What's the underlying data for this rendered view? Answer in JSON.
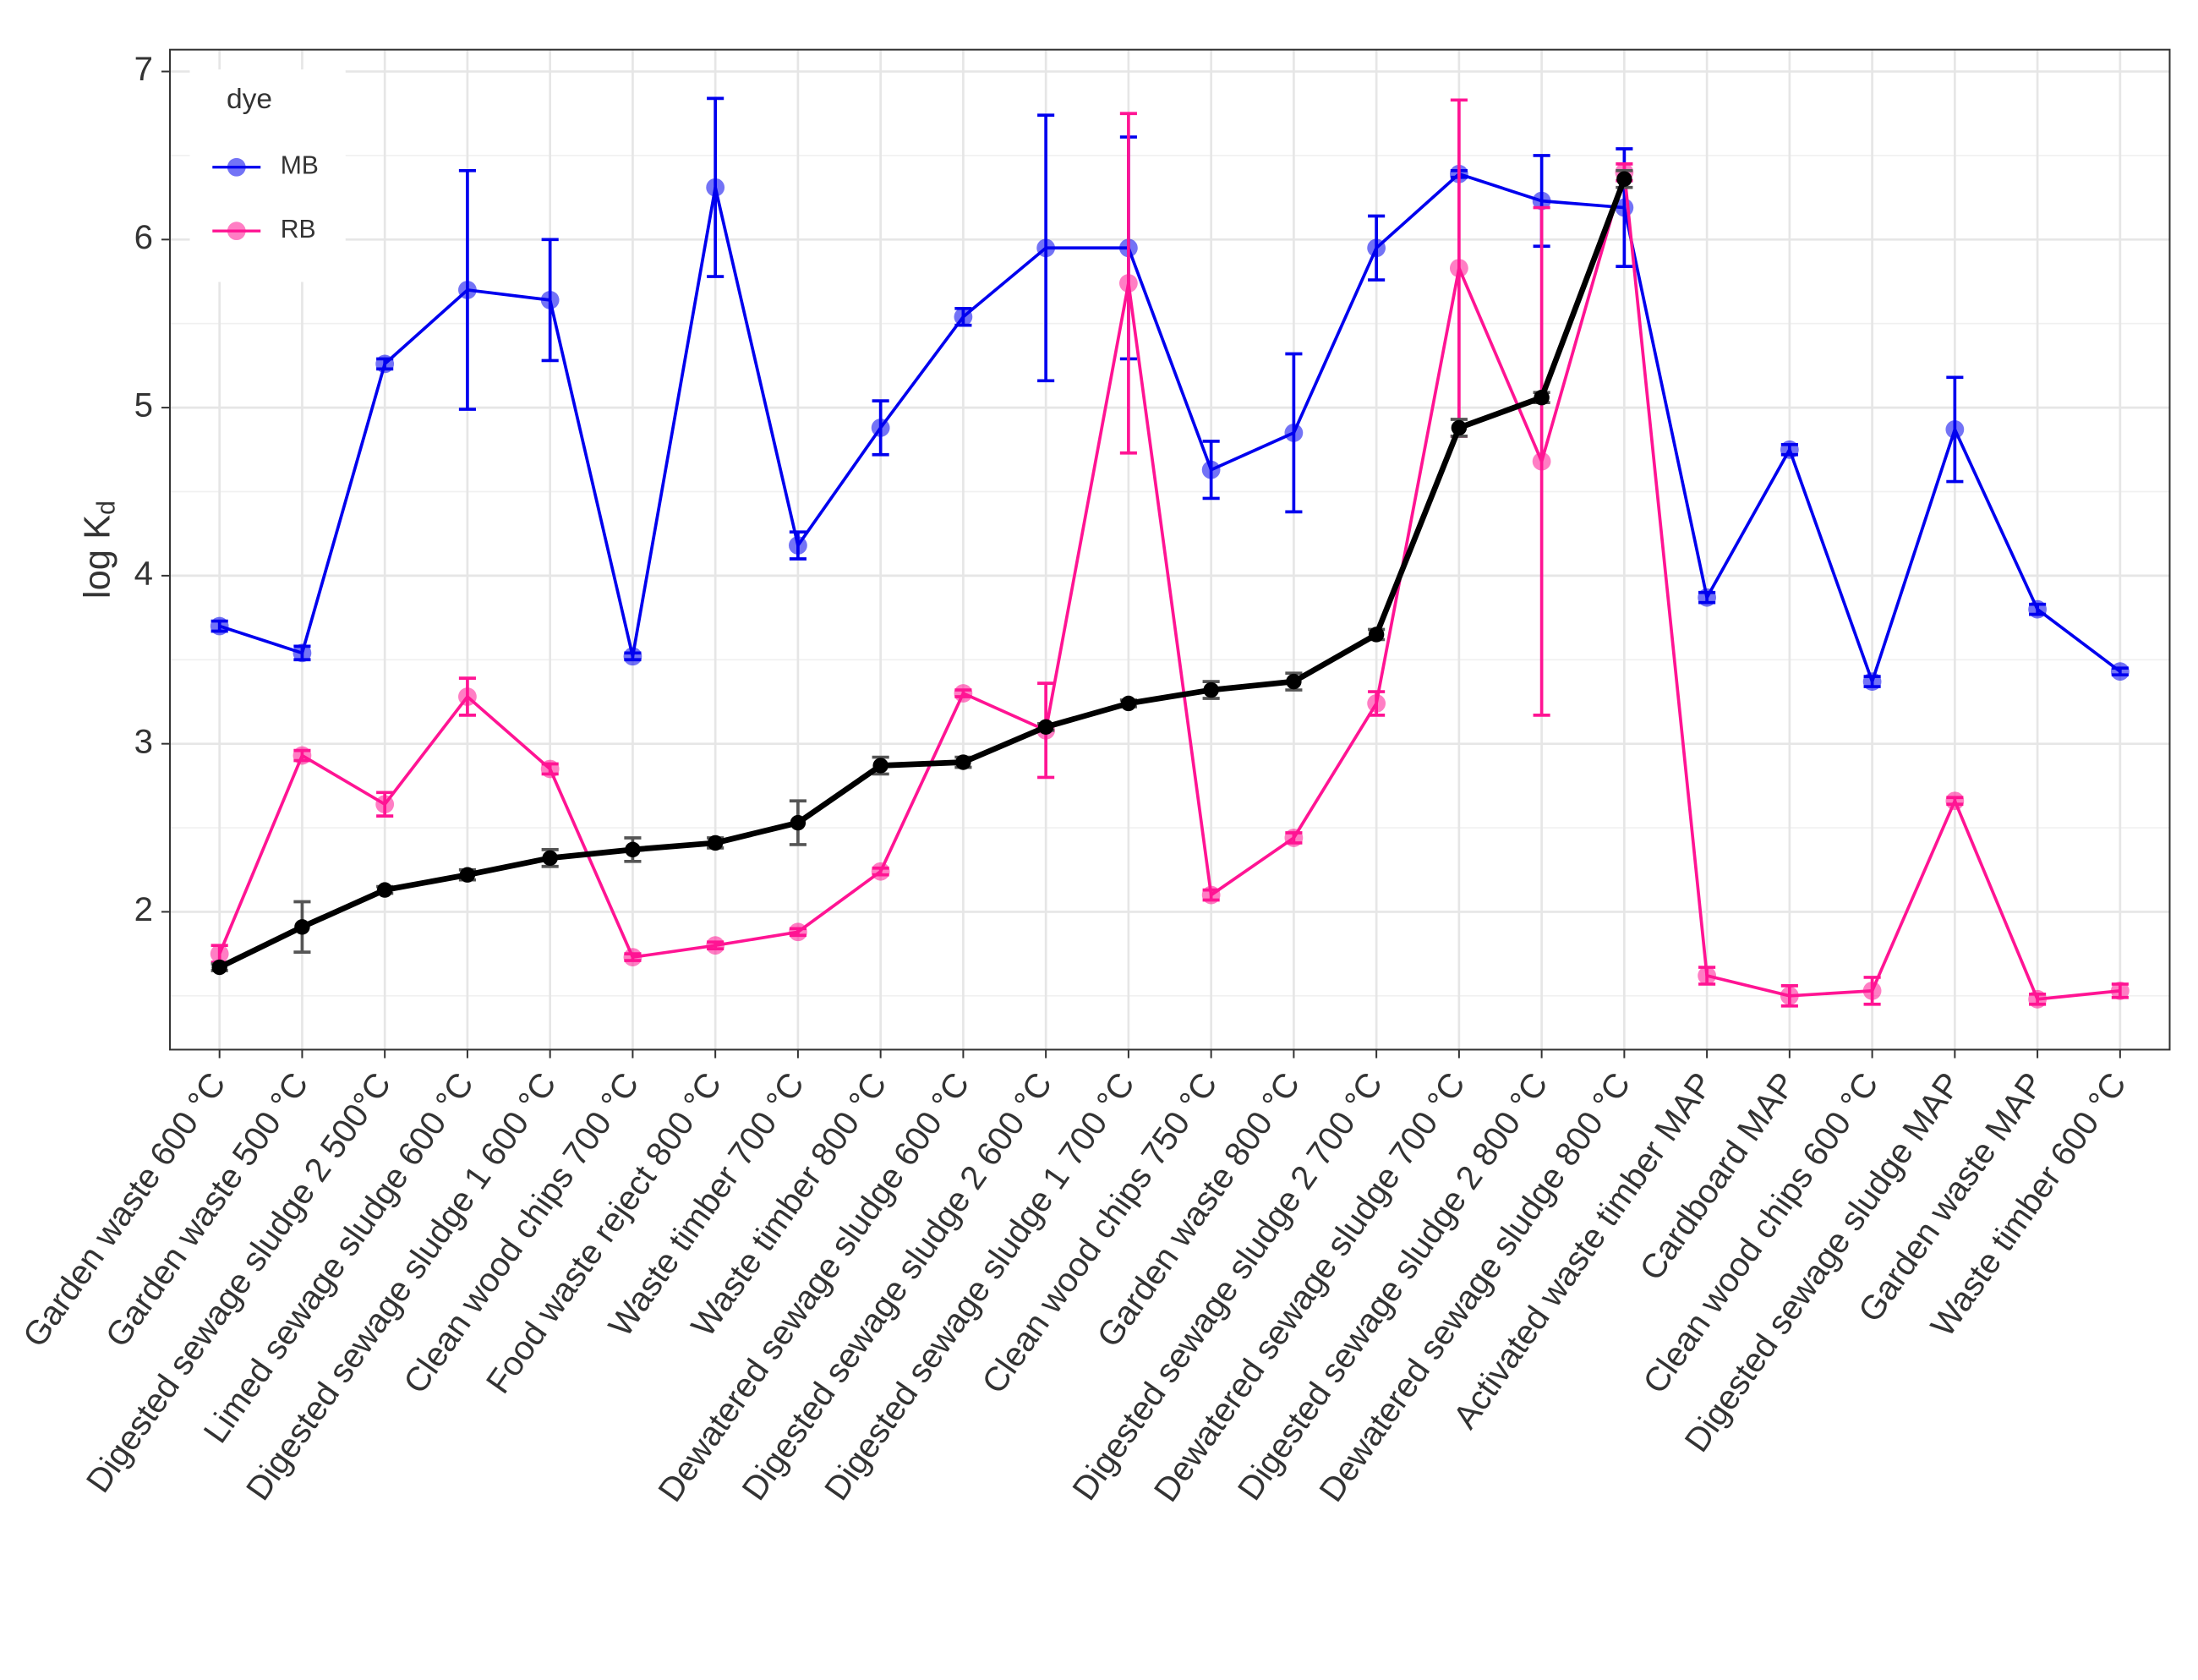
{
  "chart_data": {
    "type": "line",
    "y_label": "log K",
    "y_label_sub": "d",
    "legend_title": "dye",
    "legend_position": "top-left",
    "grid": true,
    "categories": [
      "Garden waste 600 °C",
      "Garden waste 500 °C",
      "Digested sewage sludge 2 500°C",
      "Limed sewage sludge 600 °C",
      "Digested sewage sludge 1 600 °C",
      "Clean wood chips 700 °C",
      "Food waste reject 800 °C",
      "Waste timber 700 °C",
      "Waste timber 800 °C",
      "Dewatered sewage sludge 600 °C",
      "Digested sewage sludge 2 600 °C",
      "Digested sewage sludge 1 700 °C",
      "Clean wood chips 750 °C",
      "Garden waste 800 °C",
      "Digested sewage sludge 2 700 °C",
      "Dewatered sewage sludge 700 °C",
      "Digested sewage sludge 2 800 °C",
      "Dewatered sewage sludge 800 °C",
      "Activated waste timber MAP",
      "Cardboard MAP",
      "Clean wood chips 600 °C",
      "Digested sewage sludge MAP",
      "Garden waste MAP",
      "Waste timber 600 °C"
    ],
    "ylim": [
      1.18,
      7.13
    ],
    "yticks": [
      2,
      3,
      4,
      5,
      6,
      7
    ],
    "yminor": [
      1.5,
      2.5,
      3.5,
      4.5,
      5.5,
      6.5
    ],
    "series": [
      {
        "name": "MB",
        "color": "#0000ee",
        "values": [
          3.7,
          3.54,
          5.26,
          5.7,
          5.64,
          3.52,
          6.31,
          4.18,
          4.88,
          5.54,
          5.95,
          5.95,
          4.63,
          4.85,
          5.95,
          6.39,
          6.23,
          6.19,
          3.87,
          4.75,
          3.37,
          4.87,
          3.8,
          3.43
        ],
        "errors": [
          0.03,
          0.04,
          0.03,
          0.71,
          0.36,
          0.02,
          0.53,
          0.08,
          0.16,
          0.05,
          0.79,
          0.66,
          0.17,
          0.47,
          0.19,
          0.02,
          0.27,
          0.35,
          0.03,
          0.03,
          0.03,
          0.31,
          0.03,
          0.02
        ]
      },
      {
        "name": "RB",
        "color": "#ff1493",
        "values": [
          1.75,
          2.93,
          2.64,
          3.28,
          2.85,
          1.73,
          1.8,
          1.88,
          2.24,
          3.3,
          3.08,
          5.74,
          2.1,
          2.44,
          3.24,
          5.83,
          4.68,
          6.4,
          1.62,
          1.5,
          1.53,
          2.66,
          1.48,
          1.53
        ],
        "errors": [
          0.05,
          0.03,
          0.07,
          0.11,
          0.03,
          0.02,
          0.02,
          0.02,
          0.02,
          0.02,
          0.28,
          1.01,
          0.03,
          0.03,
          0.07,
          1.0,
          1.51,
          0.05,
          0.05,
          0.06,
          0.08,
          0.02,
          0.03,
          0.04
        ]
      },
      {
        "color": "#000000",
        "error_color": "#555555",
        "values": [
          1.67,
          1.91,
          2.13,
          2.22,
          2.32,
          2.37,
          2.41,
          2.53,
          2.87,
          2.89,
          3.1,
          3.24,
          3.32,
          3.37,
          3.65,
          4.88,
          5.06,
          6.36,
          null,
          null,
          null,
          null,
          null,
          null
        ],
        "errors": [
          0.02,
          0.15,
          0.02,
          0.03,
          0.05,
          0.07,
          0.03,
          0.13,
          0.05,
          0.03,
          0.02,
          0.02,
          0.05,
          0.05,
          0.03,
          0.05,
          0.03,
          0.05,
          null,
          null,
          null,
          null,
          null,
          null
        ]
      }
    ]
  }
}
